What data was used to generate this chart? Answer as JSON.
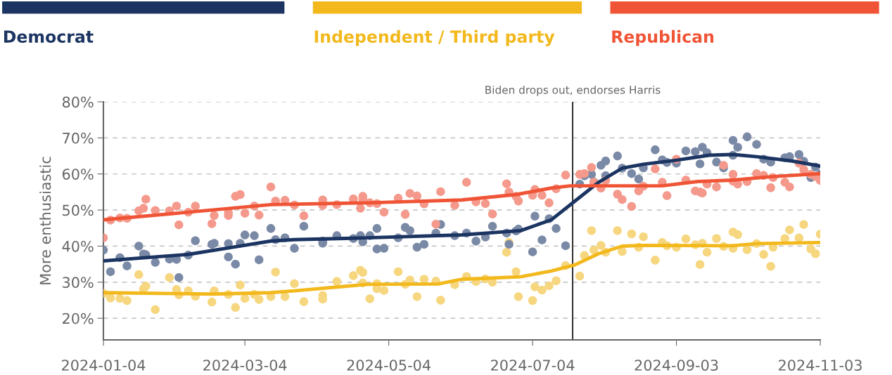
{
  "chart_data": {
    "type": "scatter",
    "ylabel": "More enthusiastic",
    "xlim": [
      "2024-01-04",
      "2024-11-03"
    ],
    "xticks": [
      "2024-01-04",
      "2024-03-04",
      "2024-05-04",
      "2024-07-04",
      "2024-09-03",
      "2024-11-03"
    ],
    "ylim": [
      14,
      80
    ],
    "yticks": [
      {
        "value": 20,
        "label": "20%"
      },
      {
        "value": 30,
        "label": "30%"
      },
      {
        "value": 40,
        "label": "40%"
      },
      {
        "value": 50,
        "label": "50%"
      },
      {
        "value": 60,
        "label": "60%"
      },
      {
        "value": 70,
        "label": "70%"
      },
      {
        "value": 80,
        "label": "80%"
      }
    ],
    "grid": "y",
    "legend": "top",
    "ref_lines": [
      {
        "axis": "x",
        "value": "2024-07-21",
        "label": "Biden drops out, endorses Harris",
        "color": "#1a1a1a"
      }
    ],
    "series": [
      {
        "marker": "circle",
        "color": "#7a8aa6",
        "x": [
          "2024-01-04",
          "2024-01-07",
          "2024-01-11",
          "2024-01-14",
          "2024-01-19",
          "2024-01-21",
          "2024-01-22",
          "2024-01-26",
          "2024-02-01",
          "2024-02-04",
          "2024-02-05",
          "2024-02-09",
          "2024-02-12",
          "2024-02-19",
          "2024-02-20",
          "2024-02-26",
          "2024-02-26",
          "2024-02-29",
          "2024-03-02",
          "2024-03-04",
          "2024-03-08",
          "2024-03-10",
          "2024-03-15",
          "2024-03-17",
          "2024-03-21",
          "2024-03-25",
          "2024-03-29",
          "2024-04-06",
          "2024-04-06",
          "2024-04-12",
          "2024-04-19",
          "2024-04-22",
          "2024-04-23",
          "2024-04-26",
          "2024-04-29",
          "2024-04-29",
          "2024-05-02",
          "2024-05-08",
          "2024-05-11",
          "2024-05-13",
          "2024-05-16",
          "2024-05-19",
          "2024-05-24",
          "2024-05-26",
          "2024-06-01",
          "2024-06-06",
          "2024-06-10",
          "2024-06-14",
          "2024-06-17",
          "2024-06-23",
          "2024-06-24",
          "2024-06-27",
          "2024-06-28",
          "2024-07-04",
          "2024-07-05",
          "2024-07-08",
          "2024-07-11",
          "2024-07-14",
          "2024-07-18",
          "2024-07-24",
          "2024-07-26",
          "2024-07-29",
          "2024-07-30",
          "2024-08-02",
          "2024-08-04",
          "2024-08-04",
          "2024-08-09",
          "2024-08-11",
          "2024-08-15",
          "2024-08-18",
          "2024-08-20",
          "2024-08-25",
          "2024-08-28",
          "2024-08-30",
          "2024-09-03",
          "2024-09-07",
          "2024-09-11",
          "2024-09-13",
          "2024-09-14",
          "2024-09-16",
          "2024-09-20",
          "2024-09-23",
          "2024-09-27",
          "2024-09-27",
          "2024-09-29",
          "2024-10-03",
          "2024-10-07",
          "2024-10-10",
          "2024-10-13",
          "2024-10-19",
          "2024-10-21",
          "2024-10-25",
          "2024-10-27",
          "2024-10-30",
          "2024-11-01",
          "2024-11-03"
        ],
        "values": [
          38.9,
          32.9,
          36.8,
          34.5,
          40.0,
          37.8,
          37.6,
          35.5,
          36.4,
          36.3,
          31.3,
          37.5,
          41.5,
          40.5,
          40.8,
          40.7,
          37.0,
          35.0,
          40.8,
          43.1,
          42.9,
          36.2,
          44.9,
          41.8,
          42.3,
          39.4,
          45.5,
          41.4,
          40.8,
          42.9,
          42.1,
          42.9,
          41.2,
          42.9,
          44.9,
          39.2,
          39.4,
          42.3,
          45.2,
          44.3,
          39.7,
          40.5,
          43.6,
          46.0,
          42.9,
          43.6,
          41.4,
          42.5,
          45.5,
          43.6,
          40.5,
          44.2,
          44.7,
          38.4,
          48.3,
          41.7,
          47.6,
          44.9,
          40.1,
          57.2,
          59.5,
          59.9,
          57.8,
          62.4,
          63.6,
          59.5,
          65.0,
          61.6,
          60.1,
          58.6,
          61.7,
          66.7,
          63.9,
          63.2,
          63.0,
          66.4,
          66.2,
          62.8,
          67.4,
          65.9,
          63.3,
          61.7,
          69.3,
          65.2,
          67.4,
          70.3,
          68.2,
          64.1,
          63.3,
          64.5,
          64.8,
          65.4,
          63.5,
          59.0,
          61.9,
          59.9
        ]
      },
      {
        "marker": "circle",
        "color": "#f6d67e",
        "x": [
          "2024-01-04",
          "2024-01-07",
          "2024-01-11",
          "2024-01-14",
          "2024-01-19",
          "2024-01-21",
          "2024-01-22",
          "2024-01-26",
          "2024-02-01",
          "2024-02-04",
          "2024-02-05",
          "2024-02-09",
          "2024-02-12",
          "2024-02-19",
          "2024-02-20",
          "2024-02-26",
          "2024-02-29",
          "2024-03-02",
          "2024-03-04",
          "2024-03-08",
          "2024-03-10",
          "2024-03-15",
          "2024-03-17",
          "2024-03-21",
          "2024-03-25",
          "2024-03-29",
          "2024-04-06",
          "2024-04-06",
          "2024-04-12",
          "2024-04-19",
          "2024-04-22",
          "2024-04-23",
          "2024-04-23",
          "2024-04-26",
          "2024-04-29",
          "2024-04-29",
          "2024-05-02",
          "2024-05-08",
          "2024-05-11",
          "2024-05-13",
          "2024-05-16",
          "2024-05-19",
          "2024-05-24",
          "2024-05-26",
          "2024-06-01",
          "2024-06-06",
          "2024-06-10",
          "2024-06-14",
          "2024-06-17",
          "2024-06-23",
          "2024-06-24",
          "2024-06-27",
          "2024-06-28",
          "2024-07-04",
          "2024-07-05",
          "2024-07-08",
          "2024-07-11",
          "2024-07-14",
          "2024-07-18",
          "2024-07-24",
          "2024-07-26",
          "2024-07-29",
          "2024-07-30",
          "2024-08-02",
          "2024-08-04",
          "2024-08-09",
          "2024-08-11",
          "2024-08-15",
          "2024-08-18",
          "2024-08-20",
          "2024-08-25",
          "2024-08-28",
          "2024-08-30",
          "2024-09-03",
          "2024-09-07",
          "2024-09-11",
          "2024-09-13",
          "2024-09-14",
          "2024-09-16",
          "2024-09-20",
          "2024-09-23",
          "2024-09-27",
          "2024-09-27",
          "2024-09-29",
          "2024-10-03",
          "2024-10-07",
          "2024-10-10",
          "2024-10-13",
          "2024-10-14",
          "2024-10-19",
          "2024-10-21",
          "2024-10-25",
          "2024-10-27",
          "2024-10-30",
          "2024-11-01",
          "2024-11-03"
        ],
        "values": [
          26.9,
          25.6,
          25.5,
          24.9,
          32.1,
          28.2,
          28.9,
          22.4,
          31.3,
          28.0,
          26.5,
          27.6,
          26.1,
          24.5,
          27.6,
          26.6,
          23.0,
          29.2,
          25.5,
          26.6,
          25.2,
          26.0,
          32.8,
          26.0,
          29.6,
          24.6,
          26.3,
          25.3,
          30.2,
          31.8,
          33.3,
          32.7,
          29.8,
          25.4,
          29.6,
          28.2,
          27.7,
          32.9,
          29.4,
          30.6,
          26.0,
          30.8,
          30.3,
          25.0,
          29.3,
          31.6,
          30.2,
          30.9,
          30.0,
          38.3,
          41.0,
          32.9,
          26.0,
          24.9,
          28.7,
          27.8,
          29.0,
          30.4,
          34.6,
          31.7,
          37.4,
          44.3,
          38.9,
          40.2,
          38.3,
          44.3,
          38.5,
          43.4,
          39.7,
          42.6,
          36.1,
          41.0,
          40.1,
          39.7,
          42.0,
          40.4,
          34.9,
          40.8,
          38.3,
          42.1,
          39.9,
          43.9,
          39.4,
          43.2,
          39.0,
          40.7,
          37.7,
          34.4,
          39.7,
          42.1,
          44.5,
          42.3,
          46.0,
          39.2,
          37.9,
          43.3
        ]
      },
      {
        "marker": "circle",
        "color": "#f4998b",
        "x": [
          "2024-01-04",
          "2024-01-07",
          "2024-01-11",
          "2024-01-14",
          "2024-01-19",
          "2024-01-21",
          "2024-01-22",
          "2024-01-26",
          "2024-02-01",
          "2024-02-04",
          "2024-02-05",
          "2024-02-09",
          "2024-02-12",
          "2024-02-19",
          "2024-02-20",
          "2024-02-26",
          "2024-02-26",
          "2024-02-29",
          "2024-03-02",
          "2024-03-04",
          "2024-03-08",
          "2024-03-10",
          "2024-03-15",
          "2024-03-17",
          "2024-03-21",
          "2024-03-25",
          "2024-03-29",
          "2024-04-06",
          "2024-04-06",
          "2024-04-12",
          "2024-04-19",
          "2024-04-22",
          "2024-04-23",
          "2024-04-23",
          "2024-04-26",
          "2024-04-29",
          "2024-05-02",
          "2024-05-08",
          "2024-05-11",
          "2024-05-13",
          "2024-05-16",
          "2024-05-19",
          "2024-05-24",
          "2024-05-26",
          "2024-06-01",
          "2024-06-06",
          "2024-06-10",
          "2024-06-14",
          "2024-06-17",
          "2024-06-23",
          "2024-06-24",
          "2024-06-27",
          "2024-06-28",
          "2024-07-04",
          "2024-07-05",
          "2024-07-08",
          "2024-07-11",
          "2024-07-14",
          "2024-07-18",
          "2024-07-24",
          "2024-07-26",
          "2024-07-29",
          "2024-07-30",
          "2024-08-02",
          "2024-08-04",
          "2024-08-09",
          "2024-08-11",
          "2024-08-15",
          "2024-08-18",
          "2024-08-20",
          "2024-08-25",
          "2024-08-28",
          "2024-08-30",
          "2024-09-03",
          "2024-09-07",
          "2024-09-11",
          "2024-09-13",
          "2024-09-14",
          "2024-09-16",
          "2024-09-20",
          "2024-09-23",
          "2024-09-27",
          "2024-09-27",
          "2024-09-29",
          "2024-10-03",
          "2024-10-07",
          "2024-10-10",
          "2024-10-13",
          "2024-10-14",
          "2024-10-19",
          "2024-10-21",
          "2024-10-25",
          "2024-10-27",
          "2024-10-30",
          "2024-11-01",
          "2024-11-03"
        ],
        "values": [
          42.3,
          47.2,
          47.8,
          47.7,
          49.8,
          50.5,
          53.0,
          49.9,
          49.8,
          51.1,
          45.9,
          49.4,
          51.1,
          46.2,
          48.5,
          49.3,
          48.5,
          53.8,
          54.3,
          49.1,
          51.1,
          48.6,
          56.4,
          52.5,
          52.7,
          51.4,
          48.4,
          52.8,
          51.3,
          51.5,
          53.1,
          50.5,
          53.8,
          53.0,
          52.0,
          51.8,
          49.4,
          53.3,
          48.8,
          54.6,
          53.9,
          51.7,
          46.1,
          55.1,
          51.3,
          57.7,
          52.3,
          51.8,
          48.9,
          57.3,
          55.0,
          53.8,
          52.5,
          54.1,
          55.7,
          54.1,
          52.0,
          55.9,
          59.7,
          59.9,
          60.1,
          61.8,
          57.7,
          56.1,
          58.2,
          54.4,
          52.9,
          51.0,
          55.3,
          56.6,
          61.4,
          57.7,
          54.0,
          64.1,
          58.3,
          55.3,
          55.0,
          54.7,
          57.2,
          56.4,
          62.4,
          59.9,
          58.0,
          57.2,
          57.9,
          60.1,
          59.6,
          56.2,
          59.0,
          57.7,
          56.4,
          63.0,
          61.2,
          59.9,
          59.3,
          58.2
        ]
      },
      {
        "type": "line",
        "name": "Democrat",
        "color": "#1b3461",
        "x": [
          "2024-01-04",
          "2024-02-09",
          "2024-03-01",
          "2024-03-15",
          "2024-03-25",
          "2024-04-25",
          "2024-06-04",
          "2024-06-29",
          "2024-07-12",
          "2024-07-22",
          "2024-08-01",
          "2024-08-11",
          "2024-08-20",
          "2024-09-03",
          "2024-09-17",
          "2024-09-27",
          "2024-10-07",
          "2024-10-22",
          "2024-11-03"
        ],
        "values": [
          35.9,
          37.7,
          39.9,
          41.4,
          41.8,
          42.3,
          43.1,
          44.3,
          47.3,
          52.5,
          57.7,
          61.6,
          62.7,
          63.8,
          65.2,
          65.4,
          64.8,
          63.6,
          62.2
        ]
      },
      {
        "type": "line",
        "name": "Independent / Third party",
        "color": "#f2b81c",
        "x": [
          "2024-01-04",
          "2024-02-19",
          "2024-03-15",
          "2024-03-25",
          "2024-04-25",
          "2024-05-25",
          "2024-06-04",
          "2024-06-29",
          "2024-07-12",
          "2024-07-22",
          "2024-08-01",
          "2024-08-11",
          "2024-08-20",
          "2024-09-27",
          "2024-10-07",
          "2024-11-03"
        ],
        "values": [
          27.1,
          26.7,
          27.1,
          27.6,
          29.4,
          29.5,
          30.8,
          31.5,
          33.1,
          34.8,
          37.9,
          40.0,
          40.2,
          40.1,
          40.7,
          41.0
        ]
      },
      {
        "type": "line",
        "name": "Republican",
        "color": "#f05436",
        "x": [
          "2024-01-04",
          "2024-02-09",
          "2024-03-15",
          "2024-04-25",
          "2024-06-04",
          "2024-06-27",
          "2024-07-12",
          "2024-07-20",
          "2024-08-20",
          "2024-08-28",
          "2024-09-12",
          "2024-09-27",
          "2024-10-12",
          "2024-11-03"
        ],
        "values": [
          47.3,
          49.4,
          51.5,
          52.0,
          52.8,
          54.3,
          56.1,
          56.7,
          56.7,
          56.7,
          57.9,
          58.3,
          59.2,
          60.1
        ]
      }
    ]
  }
}
